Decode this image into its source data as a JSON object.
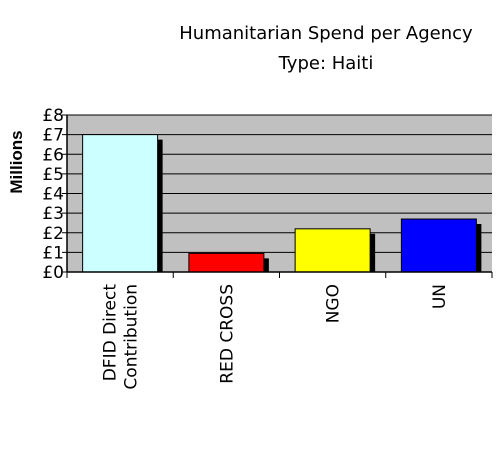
{
  "chart_data": {
    "type": "bar",
    "title": [
      "Humanitarian Spend per Agency",
      "Type: Haiti"
    ],
    "ylabel": "Millions",
    "xlabel": "",
    "categories": [
      [
        "DFID Direct",
        "Contribution"
      ],
      [
        "RED CROSS"
      ],
      [
        "NGO"
      ],
      [
        "UN"
      ]
    ],
    "values": [
      7.0,
      0.95,
      2.2,
      2.7
    ],
    "bar_colors": [
      "#ccffff",
      "#ff0000",
      "#ffff00",
      "#0000ff"
    ],
    "ylim": [
      0,
      8
    ],
    "yticks": [
      0,
      1,
      2,
      3,
      4,
      5,
      6,
      7,
      8
    ],
    "ytick_labels": [
      "£0",
      "£1",
      "£2",
      "£3",
      "£4",
      "£5",
      "£6",
      "£7",
      "£8"
    ],
    "grid": true,
    "legend": "none",
    "plot_background": "#c0c0c0"
  }
}
